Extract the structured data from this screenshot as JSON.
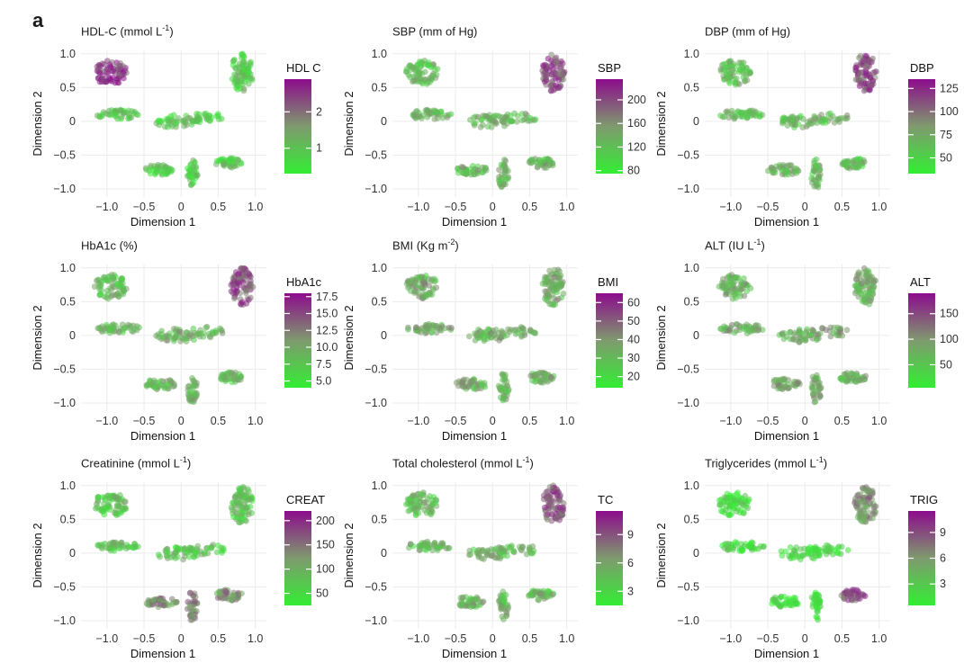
{
  "figure_label": "a",
  "colors": {
    "low": "#33ee33",
    "mid": "#7f9a6e",
    "high": "#8c0c8c",
    "grid": "#ececec"
  },
  "chart_data": [
    {
      "type": "scatter",
      "title_main": "HDL-C (mmol L",
      "title_sup": "-1",
      "title_end": ")",
      "legend_title": "HDL  C",
      "legend_ticks": [
        1,
        2
      ],
      "legend_range": [
        0.3,
        2.9
      ],
      "xlabel": "Dimension 1",
      "ylabel": "Dimension 2",
      "xticks": [
        "−1.0",
        "−0.5",
        "0",
        "0.5",
        "1.0"
      ],
      "yticks": [
        "1.0",
        "0.5",
        "0",
        "−0.5",
        "−1.0"
      ],
      "xlim": [
        -1.35,
        1.15
      ],
      "ylim": [
        -1.12,
        1.05
      ],
      "high_region": "upper-left branch"
    },
    {
      "type": "scatter",
      "title_main": "SBP (mm of Hg)",
      "title_sup": "",
      "title_end": "",
      "legend_title": "SBP",
      "legend_ticks": [
        80,
        120,
        160,
        200
      ],
      "legend_range": [
        75,
        235
      ],
      "xlabel": "Dimension 1",
      "ylabel": "Dimension 2",
      "xticks": [
        "−1.0",
        "−0.5",
        "0",
        "0.5",
        "1.0"
      ],
      "yticks": [
        "1.0",
        "0.5",
        "0",
        "−0.5",
        "−1.0"
      ],
      "xlim": [
        -1.35,
        1.15
      ],
      "ylim": [
        -1.12,
        1.05
      ],
      "high_region": "upper-right branch"
    },
    {
      "type": "scatter",
      "title_main": "DBP (mm of Hg)",
      "title_sup": "",
      "title_end": "",
      "legend_title": "DBP",
      "legend_ticks": [
        50,
        75,
        100,
        125
      ],
      "legend_range": [
        33,
        135
      ],
      "xlabel": "Dimension 1",
      "ylabel": "Dimension 2",
      "xticks": [
        "−1.0",
        "−0.5",
        "0",
        "0.5",
        "1.0"
      ],
      "yticks": [
        "1.0",
        "0.5",
        "0",
        "−0.5",
        "−1.0"
      ],
      "xlim": [
        -1.35,
        1.15
      ],
      "ylim": [
        -1.12,
        1.05
      ],
      "high_region": "upper-right branch"
    },
    {
      "type": "scatter",
      "title_main": "HbA1c (%)",
      "title_sup": "",
      "title_end": "",
      "legend_title": "HbA1c",
      "legend_ticks": [
        5.0,
        7.5,
        10.0,
        12.5,
        15.0,
        17.5
      ],
      "legend_range": [
        4.0,
        18.0
      ],
      "xlabel": "Dimension 1",
      "ylabel": "Dimension 2",
      "xticks": [
        "−1.0",
        "−0.5",
        "0",
        "0.5",
        "1.0"
      ],
      "yticks": [
        "1.0",
        "0.5",
        "0",
        "−0.5",
        "−1.0"
      ],
      "xlim": [
        -1.35,
        1.15
      ],
      "ylim": [
        -1.12,
        1.05
      ],
      "high_region": "upper-right branch"
    },
    {
      "type": "scatter",
      "title_main": "BMI (Kg m",
      "title_sup": "-2",
      "title_end": ")",
      "legend_title": "BMI",
      "legend_ticks": [
        20,
        30,
        40,
        50,
        60
      ],
      "legend_range": [
        14,
        65
      ],
      "xlabel": "Dimension 1",
      "ylabel": "Dimension 2",
      "xticks": [
        "−1.0",
        "−0.5",
        "0",
        "0.5",
        "1.0"
      ],
      "yticks": [
        "1.0",
        "0.5",
        "0",
        "−0.5",
        "−1.0"
      ],
      "xlim": [
        -1.35,
        1.15
      ],
      "ylim": [
        -1.12,
        1.05
      ],
      "high_region": "scattered"
    },
    {
      "type": "scatter",
      "title_main": "ALT (IU L",
      "title_sup": "-1",
      "title_end": ")",
      "legend_title": "ALT",
      "legend_ticks": [
        50,
        100,
        150
      ],
      "legend_range": [
        5,
        190
      ],
      "xlabel": "Dimension 1",
      "ylabel": "Dimension 2",
      "xticks": [
        "−1.0",
        "−0.5",
        "0",
        "0.5",
        "1.0"
      ],
      "yticks": [
        "1.0",
        "0.5",
        "0",
        "−0.5",
        "−1.0"
      ],
      "xlim": [
        -1.35,
        1.15
      ],
      "ylim": [
        -1.12,
        1.05
      ],
      "high_region": "scattered"
    },
    {
      "type": "scatter",
      "title_main": "Creatinine (mmol L",
      "title_sup": "-1",
      "title_end": ")",
      "legend_title": "CREAT",
      "legend_ticks": [
        50,
        100,
        150,
        200
      ],
      "legend_range": [
        25,
        220
      ],
      "xlabel": "Dimension 1",
      "ylabel": "Dimension 2",
      "xticks": [
        "−1.0",
        "−0.5",
        "0",
        "0.5",
        "1.0"
      ],
      "yticks": [
        "1.0",
        "0.5",
        "0",
        "−0.5",
        "−1.0"
      ],
      "xlim": [
        -1.35,
        1.15
      ],
      "ylim": [
        -1.12,
        1.05
      ],
      "high_region": "lower branches"
    },
    {
      "type": "scatter",
      "title_main": "Total cholesterol (mmol L",
      "title_sup": "-1",
      "title_end": ")",
      "legend_title": "TC",
      "legend_ticks": [
        3,
        6,
        9
      ],
      "legend_range": [
        1.5,
        11.5
      ],
      "xlabel": "Dimension 1",
      "ylabel": "Dimension 2",
      "xticks": [
        "−1.0",
        "−0.5",
        "0",
        "0.5",
        "1.0"
      ],
      "yticks": [
        "1.0",
        "0.5",
        "0",
        "−0.5",
        "−1.0"
      ],
      "xlim": [
        -1.35,
        1.15
      ],
      "ylim": [
        -1.12,
        1.05
      ],
      "high_region": "upper-right branch"
    },
    {
      "type": "scatter",
      "title_main": "Triglycerides (mmol L",
      "title_sup": "-1",
      "title_end": ")",
      "legend_title": "TRIG",
      "legend_ticks": [
        3,
        6,
        9
      ],
      "legend_range": [
        0.5,
        11.5
      ],
      "xlabel": "Dimension 1",
      "ylabel": "Dimension 2",
      "xticks": [
        "−1.0",
        "−0.5",
        "0",
        "0.5",
        "1.0"
      ],
      "yticks": [
        "1.0",
        "0.5",
        "0",
        "−0.5",
        "−1.0"
      ],
      "xlim": [
        -1.35,
        1.15
      ],
      "ylim": [
        -1.12,
        1.05
      ],
      "high_region": "lower-right branch"
    }
  ]
}
